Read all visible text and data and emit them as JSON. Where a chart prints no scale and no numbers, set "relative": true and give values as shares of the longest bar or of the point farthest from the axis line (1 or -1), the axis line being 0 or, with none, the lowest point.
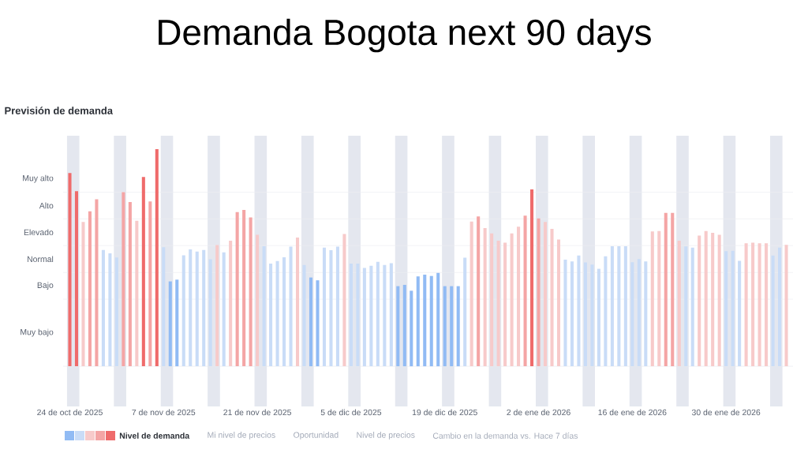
{
  "chart_data": {
    "type": "bar",
    "title": "Demanda Bogota next 90 days",
    "subtitle": "Previsión de demanda",
    "relative": true,
    "x": [
      "2025-10-24",
      "2025-10-25",
      "2025-10-26",
      "2025-10-27",
      "2025-10-28",
      "2025-10-29",
      "2025-10-30",
      "2025-10-31",
      "2025-11-01",
      "2025-11-02",
      "2025-11-03",
      "2025-11-04",
      "2025-11-05",
      "2025-11-06",
      "2025-11-07",
      "2025-11-08",
      "2025-11-09",
      "2025-11-10",
      "2025-11-11",
      "2025-11-12",
      "2025-11-13",
      "2025-11-14",
      "2025-11-15",
      "2025-11-16",
      "2025-11-17",
      "2025-11-18",
      "2025-11-19",
      "2025-11-20",
      "2025-11-21",
      "2025-11-22",
      "2025-11-23",
      "2025-11-24",
      "2025-11-25",
      "2025-11-26",
      "2025-11-27",
      "2025-11-28",
      "2025-11-29",
      "2025-11-30",
      "2025-12-01",
      "2025-12-02",
      "2025-12-03",
      "2025-12-04",
      "2025-12-05",
      "2025-12-06",
      "2025-12-07",
      "2025-12-08",
      "2025-12-09",
      "2025-12-10",
      "2025-12-11",
      "2025-12-12",
      "2025-12-13",
      "2025-12-14",
      "2025-12-15",
      "2025-12-16",
      "2025-12-17",
      "2025-12-18",
      "2025-12-19",
      "2025-12-20",
      "2025-12-21",
      "2025-12-22",
      "2025-12-23",
      "2025-12-24",
      "2025-12-25",
      "2025-12-26",
      "2025-12-27",
      "2025-12-28",
      "2025-12-29",
      "2025-12-30",
      "2025-12-31",
      "2026-01-01",
      "2026-01-02",
      "2026-01-03",
      "2026-01-04",
      "2026-01-05",
      "2026-01-06",
      "2026-01-07",
      "2026-01-08",
      "2026-01-09",
      "2026-01-10",
      "2026-01-11",
      "2026-01-12",
      "2026-01-13",
      "2026-01-14",
      "2026-01-15",
      "2026-01-16",
      "2026-01-17",
      "2026-01-18",
      "2026-01-19",
      "2026-01-20",
      "2026-01-21",
      "2026-01-22",
      "2026-01-23",
      "2026-01-24",
      "2026-01-25",
      "2026-01-26",
      "2026-01-27",
      "2026-01-28",
      "2026-01-29",
      "2026-01-30",
      "2026-01-31",
      "2026-02-01",
      "2026-02-02",
      "2026-02-03",
      "2026-02-04",
      "2026-02-05",
      "2026-02-06",
      "2026-02-07",
      "2026-02-08"
    ],
    "series": [
      {
        "name": "Nivel de demanda",
        "values": [
          0.89,
          0.807,
          0.665,
          0.714,
          0.769,
          0.536,
          0.52,
          0.501,
          0.802,
          0.757,
          0.67,
          0.872,
          0.759,
          1,
          0.548,
          0.391,
          0.399,
          0.511,
          0.538,
          0.528,
          0.536,
          0.493,
          0.558,
          0.525,
          0.578,
          0.71,
          0.72,
          0.686,
          0.606,
          0.553,
          0.473,
          0.485,
          0.502,
          0.551,
          0.593,
          0.467,
          0.409,
          0.396,
          0.547,
          0.535,
          0.551,
          0.609,
          0.473,
          0.473,
          0.453,
          0.463,
          0.481,
          0.467,
          0.475,
          0.369,
          0.375,
          0.348,
          0.414,
          0.422,
          0.416,
          0.43,
          0.369,
          0.369,
          0.369,
          0.5,
          0.667,
          0.69,
          0.637,
          0.612,
          0.578,
          0.569,
          0.612,
          0.643,
          0.694,
          0.815,
          0.681,
          0.665,
          0.633,
          0.584,
          0.491,
          0.483,
          0.51,
          0.478,
          0.468,
          0.449,
          0.507,
          0.553,
          0.553,
          0.553,
          0.479,
          0.494,
          0.483,
          0.621,
          0.623,
          0.707,
          0.707,
          0.578,
          0.552,
          0.547,
          0.602,
          0.623,
          0.615,
          0.606,
          0.53,
          0.532,
          0.486,
          0.567,
          0.569,
          0.567,
          0.567,
          0.51,
          0.547,
          0.559
        ],
        "colors": [
          "#ef6b6b",
          "#ef6b6b",
          "#f7caca",
          "#f4a5a5",
          "#f4a5a5",
          "#c9dcf7",
          "#c9dcf7",
          "#c9dcf7",
          "#f4a5a5",
          "#f4a5a5",
          "#f7caca",
          "#ef6b6b",
          "#f4a5a5",
          "#ef6b6b",
          "#c9dcf7",
          "#91bbf4",
          "#91bbf4",
          "#c9dcf7",
          "#c9dcf7",
          "#c9dcf7",
          "#c9dcf7",
          "#c9dcf7",
          "#f7caca",
          "#c9dcf7",
          "#f7caca",
          "#f4a5a5",
          "#f4a5a5",
          "#f4a5a5",
          "#f7caca",
          "#c9dcf7",
          "#c9dcf7",
          "#c9dcf7",
          "#c9dcf7",
          "#c9dcf7",
          "#f7caca",
          "#c9dcf7",
          "#91bbf4",
          "#91bbf4",
          "#c9dcf7",
          "#c9dcf7",
          "#c9dcf7",
          "#f7caca",
          "#c9dcf7",
          "#c9dcf7",
          "#c9dcf7",
          "#c9dcf7",
          "#c9dcf7",
          "#c9dcf7",
          "#c9dcf7",
          "#91bbf4",
          "#91bbf4",
          "#91bbf4",
          "#91bbf4",
          "#91bbf4",
          "#91bbf4",
          "#91bbf4",
          "#91bbf4",
          "#91bbf4",
          "#91bbf4",
          "#c9dcf7",
          "#f7caca",
          "#f4a5a5",
          "#f7caca",
          "#f7caca",
          "#f7caca",
          "#f7caca",
          "#f7caca",
          "#f7caca",
          "#f4a5a5",
          "#ef6b6b",
          "#f4a5a5",
          "#f7caca",
          "#f7caca",
          "#f7caca",
          "#c9dcf7",
          "#c9dcf7",
          "#c9dcf7",
          "#c9dcf7",
          "#c9dcf7",
          "#c9dcf7",
          "#c9dcf7",
          "#c9dcf7",
          "#c9dcf7",
          "#c9dcf7",
          "#c9dcf7",
          "#c9dcf7",
          "#c9dcf7",
          "#f7caca",
          "#f7caca",
          "#f4a5a5",
          "#f4a5a5",
          "#f7caca",
          "#c9dcf7",
          "#c9dcf7",
          "#f7caca",
          "#f7caca",
          "#f7caca",
          "#f7caca",
          "#c9dcf7",
          "#c9dcf7",
          "#c9dcf7",
          "#f7caca",
          "#f7caca",
          "#f7caca",
          "#f7caca",
          "#c9dcf7",
          "#c9dcf7",
          "#f7caca"
        ]
      }
    ],
    "xlim": [
      "2025-10-23",
      "2026-02-09"
    ],
    "xticks": [
      {
        "value": "2025-10-24",
        "label": "24 de oct de 2025"
      },
      {
        "value": "2025-11-07",
        "label": "7 de nov de 2025"
      },
      {
        "value": "2025-11-21",
        "label": "21 de nov de 2025"
      },
      {
        "value": "2025-12-05",
        "label": "5 de dic de 2025"
      },
      {
        "value": "2025-12-19",
        "label": "19 de dic de 2025"
      },
      {
        "value": "2026-01-02",
        "label": "2 de ene de 2026"
      },
      {
        "value": "2026-01-16",
        "label": "16 de ene de 2026"
      },
      {
        "value": "2026-01-30",
        "label": "30 de ene de 2026"
      }
    ],
    "legend": "bottom",
    "ref_lines": [
      {
        "axis": "y",
        "value": 0,
        "color": "#e6e8ed"
      },
      {
        "axis": "y",
        "value": 0.309,
        "color": "#eceef2"
      },
      {
        "axis": "y",
        "value": 0.432,
        "color": "#eceef2"
      },
      {
        "axis": "y",
        "value": 0.556,
        "color": "#eceef2"
      },
      {
        "axis": "y",
        "value": 0.679,
        "color": "#eceef2"
      },
      {
        "axis": "y",
        "value": 0.802,
        "color": "#eceef2"
      }
    ],
    "bands": [
      {
        "axis": "x",
        "from": "2025-10-24",
        "to": "2025-10-25",
        "color": "#e4e7ef"
      },
      {
        "axis": "x",
        "from": "2025-10-31",
        "to": "2025-11-01",
        "color": "#e4e7ef"
      },
      {
        "axis": "x",
        "from": "2025-11-07",
        "to": "2025-11-08",
        "color": "#e4e7ef"
      },
      {
        "axis": "x",
        "from": "2025-11-14",
        "to": "2025-11-15",
        "color": "#e4e7ef"
      },
      {
        "axis": "x",
        "from": "2025-11-21",
        "to": "2025-11-22",
        "color": "#e4e7ef"
      },
      {
        "axis": "x",
        "from": "2025-11-28",
        "to": "2025-11-29",
        "color": "#e4e7ef"
      },
      {
        "axis": "x",
        "from": "2025-12-05",
        "to": "2025-12-06",
        "color": "#e4e7ef"
      },
      {
        "axis": "x",
        "from": "2025-12-12",
        "to": "2025-12-13",
        "color": "#e4e7ef"
      },
      {
        "axis": "x",
        "from": "2025-12-19",
        "to": "2025-12-20",
        "color": "#e4e7ef"
      },
      {
        "axis": "x",
        "from": "2025-12-26",
        "to": "2025-12-27",
        "color": "#e4e7ef"
      },
      {
        "axis": "x",
        "from": "2026-01-02",
        "to": "2026-01-03",
        "color": "#e4e7ef"
      },
      {
        "axis": "x",
        "from": "2026-01-09",
        "to": "2026-01-10",
        "color": "#e4e7ef"
      },
      {
        "axis": "x",
        "from": "2026-01-16",
        "to": "2026-01-17",
        "color": "#e4e7ef"
      },
      {
        "axis": "x",
        "from": "2026-01-23",
        "to": "2026-01-24",
        "color": "#e4e7ef"
      },
      {
        "axis": "x",
        "from": "2026-01-30",
        "to": "2026-01-31",
        "color": "#e4e7ef"
      },
      {
        "axis": "x",
        "from": "2026-02-06",
        "to": "2026-02-07",
        "color": "#e4e7ef"
      }
    ],
    "annotations": [
      "Muy alto",
      "Alto",
      "Elevado",
      "Normal",
      "Bajo",
      "Muy bajo",
      "Mi nivel de precios",
      "Oportunidad",
      "Nivel de precios",
      "Cambio en la demanda vs. Hace 7 días"
    ]
  }
}
